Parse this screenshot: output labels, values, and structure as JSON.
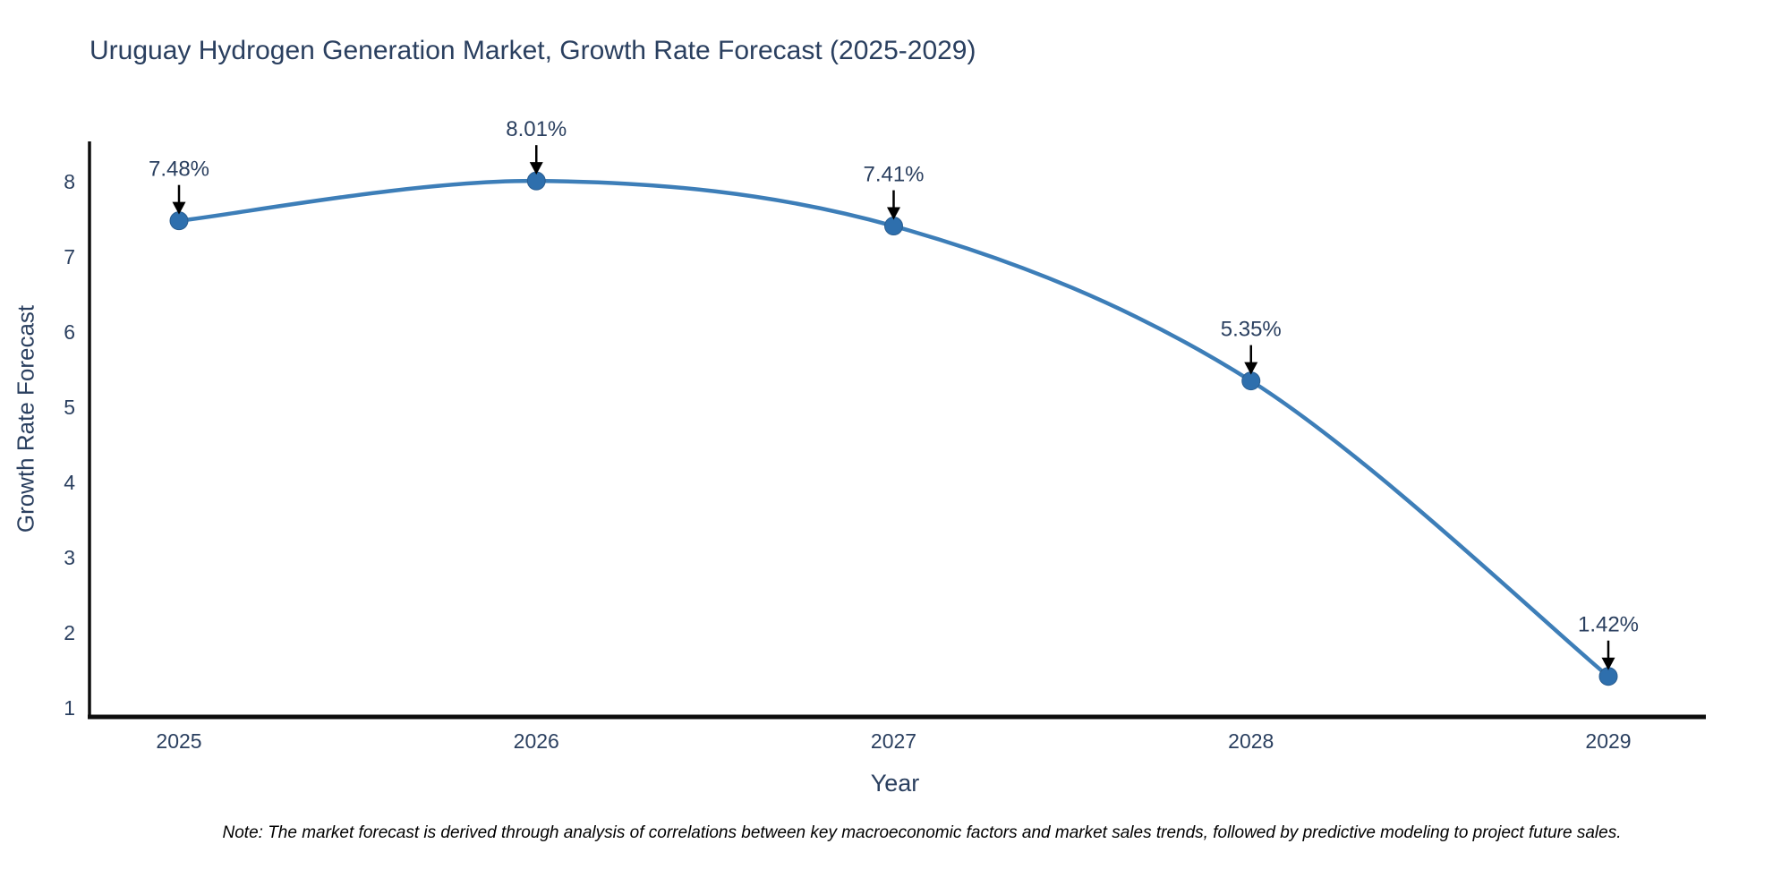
{
  "chart_data": {
    "type": "line",
    "title": "Uruguay Hydrogen Generation Market, Growth Rate Forecast (2025-2029)",
    "xlabel": "Year",
    "ylabel": "Growth Rate Forecast",
    "categories": [
      "2025",
      "2026",
      "2027",
      "2028",
      "2029"
    ],
    "series": [
      {
        "name": "Growth Rate Forecast",
        "values": [
          7.48,
          8.01,
          7.41,
          5.35,
          1.42
        ]
      }
    ],
    "point_labels": [
      "7.48%",
      "8.01%",
      "7.41%",
      "5.35%",
      "1.42%"
    ],
    "y_ticks": [
      1,
      2,
      3,
      4,
      5,
      6,
      7,
      8
    ],
    "ylim": [
      1,
      8
    ],
    "grid": false,
    "legend": "none",
    "note": "Note: The market forecast is derived through analysis of correlations between key macroeconomic factors and market sales trends, followed by predictive modeling to project future sales.",
    "colors": {
      "line": "#3d7eb8",
      "marker": "#2e6fad",
      "marker_edge": "#2a5d8f",
      "axis_line": "#0d0d0d",
      "text": "#2a3f5f",
      "annotation_text": "#2a3f5f",
      "annotation_arrow": "#000000"
    }
  }
}
